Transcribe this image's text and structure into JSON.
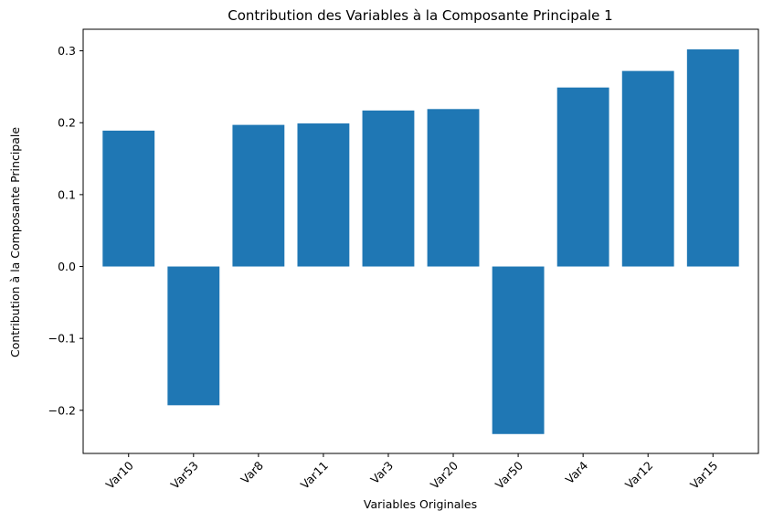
{
  "chart_data": {
    "type": "bar",
    "title": "Contribution des Variables à la Composante Principale 1",
    "xlabel": "Variables Originales",
    "ylabel": "Contribution à la Composante Principale",
    "categories": [
      "Var10",
      "Var53",
      "Var8",
      "Var11",
      "Var3",
      "Var20",
      "Var50",
      "Var4",
      "Var12",
      "Var15"
    ],
    "values": [
      0.189,
      -0.193,
      0.197,
      0.199,
      0.217,
      0.219,
      -0.233,
      0.249,
      0.272,
      0.302
    ],
    "ylim": [
      -0.26,
      0.33
    ],
    "yticks": [
      -0.2,
      -0.1,
      0.0,
      0.1,
      0.2,
      0.3
    ],
    "ytick_labels": [
      "−0.2",
      "−0.1",
      "0.0",
      "0.1",
      "0.2",
      "0.3"
    ],
    "grid": false,
    "bar_color": "#1f77b4"
  }
}
